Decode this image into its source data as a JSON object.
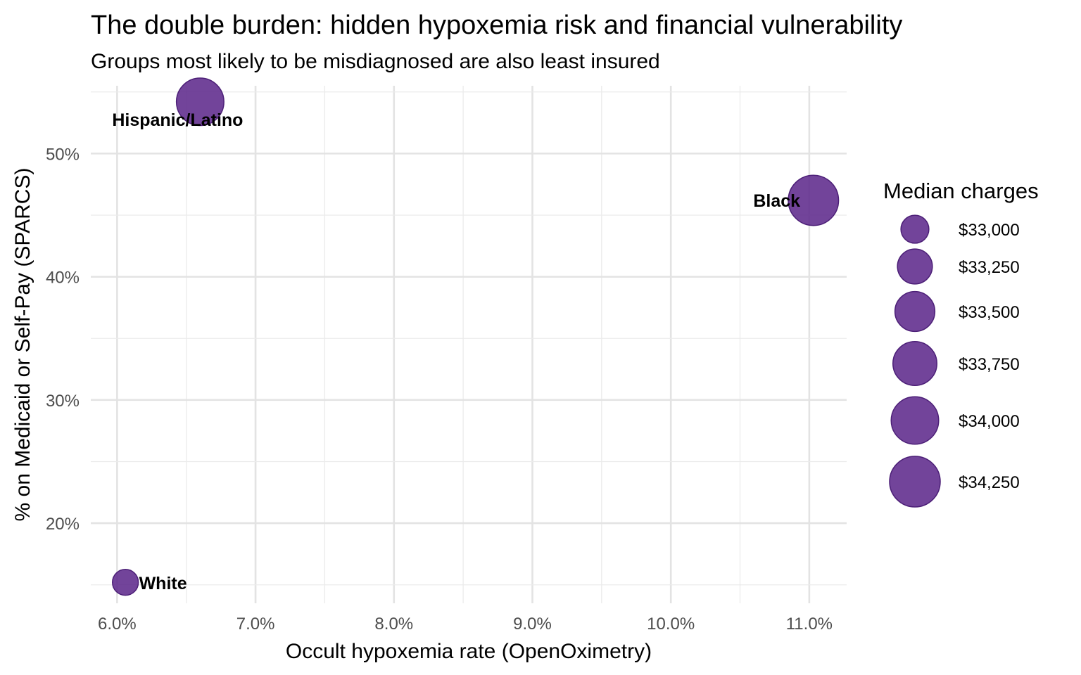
{
  "chart_data": {
    "type": "scatter",
    "title": "The double burden: hidden hypoxemia risk and financial vulnerability",
    "subtitle": "Groups most likely to be misdiagnosed are also least insured",
    "xlabel": "Occult hypoxemia rate (OpenOximetry)",
    "ylabel": "% on Medicaid or Self-Pay (SPARCS)",
    "xlim": [
      5.81,
      11.27
    ],
    "ylim": [
      13.5,
      55.5
    ],
    "x_ticks": [
      6,
      7,
      8,
      9,
      10,
      11
    ],
    "x_tick_labels": [
      "6.0%",
      "7.0%",
      "8.0%",
      "9.0%",
      "10.0%",
      "11.0%"
    ],
    "y_ticks": [
      20,
      30,
      40,
      50
    ],
    "y_tick_labels": [
      "20%",
      "30%",
      "40%",
      "50%"
    ],
    "grid": true,
    "point_color": "#5E2A8C",
    "points": [
      {
        "label": "Hispanic/Latino",
        "x": 6.6,
        "y": 54.2,
        "median_charges": 34000
      },
      {
        "label": "Black",
        "x": 11.03,
        "y": 46.2,
        "median_charges": 34220
      },
      {
        "label": "White",
        "x": 6.06,
        "y": 15.2,
        "median_charges": 32950
      }
    ],
    "legend": {
      "title": "Median charges",
      "position": "right",
      "items": [
        {
          "label": "$33,000",
          "value": 33000
        },
        {
          "label": "$33,250",
          "value": 33250
        },
        {
          "label": "$33,500",
          "value": 33500
        },
        {
          "label": "$33,750",
          "value": 33750
        },
        {
          "label": "$34,000",
          "value": 34000
        },
        {
          "label": "$34,250",
          "value": 34250
        }
      ]
    }
  }
}
